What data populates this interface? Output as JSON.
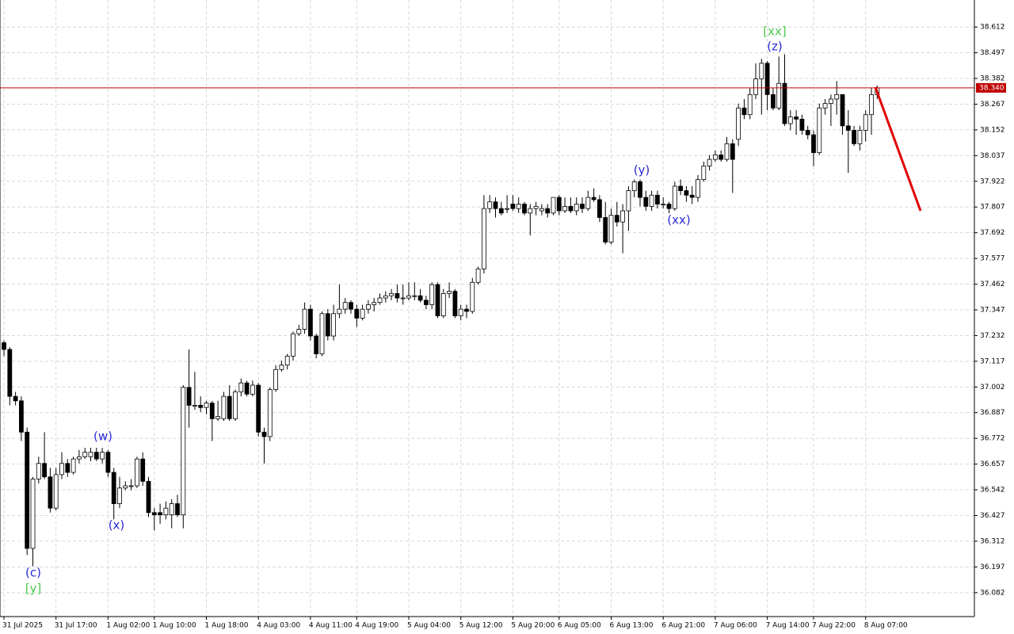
{
  "chart_data": {
    "type": "candlestick",
    "categories": [
      "31 Jul 2025",
      null,
      null,
      null,
      null,
      null,
      null,
      null,
      null,
      "31 Jul 17:00",
      null,
      null,
      null,
      null,
      null,
      null,
      null,
      null,
      "1 Aug 02:00",
      null,
      null,
      null,
      null,
      null,
      null,
      null,
      "1 Aug 10:00",
      null,
      null,
      null,
      null,
      null,
      null,
      null,
      null,
      "1 Aug 18:00",
      null,
      null,
      null,
      null,
      null,
      null,
      null,
      null,
      "4 Aug 03:00",
      null,
      null,
      null,
      null,
      null,
      null,
      null,
      null,
      "4 Aug 11:00",
      null,
      null,
      null,
      null,
      null,
      null,
      null,
      "4 Aug 19:00",
      null,
      null,
      null,
      null,
      null,
      null,
      null,
      null,
      "5 Aug 04:00",
      null,
      null,
      null,
      null,
      null,
      null,
      null,
      null,
      "5 Aug 12:00",
      null,
      null,
      null,
      null,
      null,
      null,
      null,
      null,
      "5 Aug 20:00",
      null,
      null,
      null,
      null,
      null,
      null,
      null,
      "6 Aug 05:00",
      null,
      null,
      null,
      null,
      null,
      null,
      null,
      null,
      "6 Aug 13:00",
      null,
      null,
      null,
      null,
      null,
      null,
      null,
      null,
      "6 Aug 21:00",
      null,
      null,
      null,
      null,
      null,
      null,
      null,
      null,
      "7 Aug 06:00",
      null,
      null,
      null,
      null,
      null,
      null,
      null,
      null,
      "7 Aug 14:00",
      null,
      null,
      null,
      null,
      null,
      null,
      null,
      "7 Aug 22:00",
      null,
      null,
      null,
      null,
      null,
      null,
      null,
      null,
      "8 Aug 07:00",
      null,
      null
    ],
    "open": [
      37.2,
      37.17,
      36.96,
      36.94,
      36.8,
      36.28,
      36.59,
      36.66,
      36.6,
      36.46,
      36.61,
      36.66,
      36.62,
      36.68,
      36.69,
      36.69,
      36.71,
      36.68,
      36.71,
      36.62,
      36.48,
      36.55,
      36.56,
      36.56,
      36.68,
      36.58,
      36.44,
      36.44,
      36.43,
      36.43,
      36.48,
      36.43,
      37.0,
      36.92,
      36.92,
      36.91,
      36.93,
      36.86,
      36.86,
      36.96,
      36.86,
      36.98,
      37.02,
      36.97,
      37.01,
      36.8,
      36.78,
      36.99,
      37.08,
      37.1,
      37.14,
      37.24,
      37.26,
      37.35,
      37.23,
      37.15,
      37.33,
      37.23,
      37.33,
      37.35,
      37.38,
      37.35,
      37.31,
      37.35,
      37.37,
      37.38,
      37.4,
      37.41,
      37.42,
      37.4,
      37.4,
      37.41,
      37.41,
      37.39,
      37.37,
      37.46,
      37.32,
      37.42,
      37.43,
      37.32,
      37.35,
      37.34,
      37.47,
      37.53,
      37.8,
      37.83,
      37.8,
      37.8,
      37.82,
      37.8,
      37.82,
      37.78,
      37.8,
      37.79,
      37.8,
      37.78,
      37.85,
      37.79,
      37.81,
      37.79,
      37.82,
      37.8,
      37.85,
      37.84,
      37.76,
      37.65,
      37.77,
      37.74,
      37.79,
      37.88,
      37.92,
      37.85,
      37.81,
      37.86,
      37.82,
      37.82,
      37.8,
      37.9,
      37.88,
      37.86,
      37.85,
      37.93,
      37.99,
      38.02,
      38.04,
      38.02,
      38.09,
      38.11,
      38.25,
      38.22,
      38.31,
      38.38,
      38.45,
      38.31,
      38.25,
      38.36,
      38.18,
      38.21,
      38.2,
      38.15,
      38.13,
      38.05,
      38.25,
      38.27,
      38.29,
      38.31,
      38.17,
      38.15,
      38.09,
      38.15,
      38.22,
      38.31
    ],
    "high": [
      37.21,
      37.18,
      36.98,
      36.96,
      36.82,
      36.6,
      36.69,
      36.8,
      36.64,
      36.64,
      36.71,
      36.68,
      36.69,
      36.72,
      36.73,
      36.73,
      36.73,
      36.73,
      36.72,
      36.64,
      36.6,
      36.58,
      36.59,
      36.69,
      36.71,
      36.6,
      36.46,
      36.48,
      36.49,
      36.5,
      36.52,
      37.01,
      37.17,
      37.07,
      36.96,
      36.94,
      36.94,
      36.94,
      36.98,
      37.01,
      36.99,
      37.04,
      37.03,
      37.03,
      37.02,
      36.82,
      37.0,
      37.1,
      37.12,
      37.15,
      37.25,
      37.28,
      37.38,
      37.37,
      37.24,
      37.34,
      37.35,
      37.37,
      37.46,
      37.4,
      37.39,
      37.37,
      37.37,
      37.39,
      37.4,
      37.42,
      37.43,
      37.44,
      37.46,
      37.46,
      37.47,
      37.47,
      37.44,
      37.41,
      37.47,
      37.47,
      37.44,
      37.47,
      37.44,
      37.37,
      37.37,
      37.49,
      37.54,
      37.86,
      37.86,
      37.85,
      37.83,
      37.86,
      37.86,
      37.85,
      37.83,
      37.82,
      37.83,
      37.82,
      37.82,
      37.85,
      37.86,
      37.85,
      37.85,
      37.85,
      37.85,
      37.88,
      37.89,
      37.86,
      37.83,
      37.8,
      37.83,
      37.82,
      37.9,
      37.93,
      37.93,
      37.88,
      37.88,
      37.88,
      37.85,
      37.83,
      37.92,
      37.93,
      37.9,
      37.9,
      37.95,
      38.01,
      38.04,
      38.06,
      38.06,
      38.12,
      38.11,
      38.27,
      38.29,
      38.34,
      38.45,
      38.47,
      38.46,
      38.34,
      38.48,
      38.49,
      38.24,
      38.24,
      38.22,
      38.17,
      38.15,
      38.27,
      38.29,
      38.31,
      38.37,
      38.31,
      38.24,
      38.17,
      38.17,
      38.24,
      38.34,
      38.35
    ],
    "low": [
      37.14,
      36.92,
      36.92,
      36.76,
      36.25,
      36.2,
      36.57,
      36.59,
      36.44,
      36.45,
      36.59,
      36.6,
      36.61,
      36.66,
      36.68,
      36.67,
      36.67,
      36.66,
      36.6,
      36.41,
      36.46,
      36.54,
      36.54,
      36.55,
      36.56,
      36.42,
      36.36,
      36.39,
      36.41,
      36.37,
      36.42,
      36.37,
      36.82,
      36.9,
      36.89,
      36.88,
      36.76,
      36.85,
      36.85,
      36.85,
      36.85,
      36.96,
      36.96,
      36.96,
      36.78,
      36.66,
      36.76,
      36.98,
      37.07,
      37.08,
      37.12,
      37.23,
      37.24,
      37.21,
      37.13,
      37.14,
      37.21,
      37.21,
      37.31,
      37.33,
      37.33,
      37.27,
      37.3,
      37.33,
      37.34,
      37.37,
      37.38,
      37.39,
      37.38,
      37.37,
      37.39,
      37.39,
      37.38,
      37.35,
      37.35,
      37.31,
      37.31,
      37.4,
      37.31,
      37.3,
      37.31,
      37.33,
      37.46,
      37.51,
      37.78,
      37.76,
      37.77,
      37.78,
      37.79,
      37.78,
      37.77,
      37.68,
      37.77,
      37.77,
      37.76,
      37.77,
      37.77,
      37.78,
      37.78,
      37.77,
      37.78,
      37.79,
      37.83,
      37.74,
      37.64,
      37.64,
      37.72,
      37.6,
      37.7,
      37.85,
      37.81,
      37.79,
      37.79,
      37.8,
      37.8,
      37.78,
      37.79,
      37.86,
      37.83,
      37.82,
      37.83,
      37.92,
      37.97,
      38.01,
      38.01,
      38.01,
      37.87,
      38.08,
      38.2,
      38.2,
      38.29,
      38.22,
      38.24,
      38.24,
      38.24,
      38.17,
      38.15,
      38.13,
      38.13,
      38.11,
      37.99,
      38.04,
      38.22,
      38.17,
      38.22,
      38.13,
      37.96,
      38.08,
      38.06,
      38.1,
      38.13,
      38.29
    ],
    "close": [
      37.17,
      36.96,
      36.94,
      36.8,
      36.28,
      36.59,
      36.66,
      36.6,
      36.46,
      36.61,
      36.66,
      36.62,
      36.68,
      36.69,
      36.71,
      36.71,
      36.68,
      36.71,
      36.62,
      36.48,
      36.55,
      36.56,
      36.56,
      36.68,
      36.58,
      36.44,
      36.43,
      36.43,
      36.46,
      36.48,
      36.43,
      37.0,
      36.92,
      36.92,
      36.91,
      36.93,
      36.86,
      36.87,
      36.96,
      36.86,
      36.98,
      37.02,
      36.97,
      37.01,
      36.8,
      36.78,
      36.99,
      37.08,
      37.1,
      37.14,
      37.24,
      37.26,
      37.35,
      37.23,
      37.15,
      37.33,
      37.23,
      37.33,
      37.35,
      37.38,
      37.35,
      37.31,
      37.35,
      37.37,
      37.38,
      37.4,
      37.41,
      37.42,
      37.4,
      37.4,
      37.41,
      37.41,
      37.39,
      37.37,
      37.46,
      37.32,
      37.42,
      37.43,
      37.32,
      37.35,
      37.34,
      37.47,
      37.53,
      37.8,
      37.83,
      37.8,
      37.78,
      37.8,
      37.8,
      37.82,
      37.78,
      37.8,
      37.81,
      37.8,
      37.78,
      37.85,
      37.79,
      37.81,
      37.79,
      37.82,
      37.8,
      37.85,
      37.84,
      37.76,
      37.65,
      37.77,
      37.74,
      37.79,
      37.88,
      37.92,
      37.85,
      37.81,
      37.86,
      37.82,
      37.82,
      37.8,
      37.9,
      37.88,
      37.86,
      37.85,
      37.93,
      37.99,
      38.02,
      38.04,
      38.02,
      38.09,
      38.02,
      38.25,
      38.22,
      38.31,
      38.38,
      38.45,
      38.31,
      38.25,
      38.36,
      38.18,
      38.21,
      38.2,
      38.15,
      38.13,
      38.05,
      38.25,
      38.27,
      38.29,
      38.31,
      38.17,
      38.15,
      38.09,
      38.15,
      38.22,
      38.31,
      38.34
    ],
    "ylim": [
      35.975,
      38.733
    ],
    "yticks": [
      38.612,
      38.497,
      38.382,
      38.267,
      38.152,
      38.037,
      37.922,
      37.807,
      37.692,
      37.577,
      37.462,
      37.347,
      37.232,
      37.117,
      37.002,
      36.887,
      36.772,
      36.657,
      36.542,
      36.427,
      36.312,
      36.197,
      36.082
    ],
    "grid": true,
    "up_color": "#ffffff",
    "down_color": "#000000",
    "price_line": {
      "value": 38.34,
      "label": "38.340"
    },
    "price_line_color": "#c00000",
    "annotations": [
      {
        "text": "[xx]",
        "color": "#4cc94c"
      },
      {
        "text": "(z)",
        "color": "#2a2ad8"
      },
      {
        "text": "(y)",
        "color": "#2a2ad8"
      },
      {
        "text": "(xx)",
        "color": "#2a2ad8"
      },
      {
        "text": "(w)",
        "color": "#2a2ad8"
      },
      {
        "text": "(x)",
        "color": "#2a2ad8"
      },
      {
        "text": "(c)",
        "color": "#2a2ad8"
      },
      {
        "text": "[y]",
        "color": "#4cc94c"
      }
    ]
  }
}
